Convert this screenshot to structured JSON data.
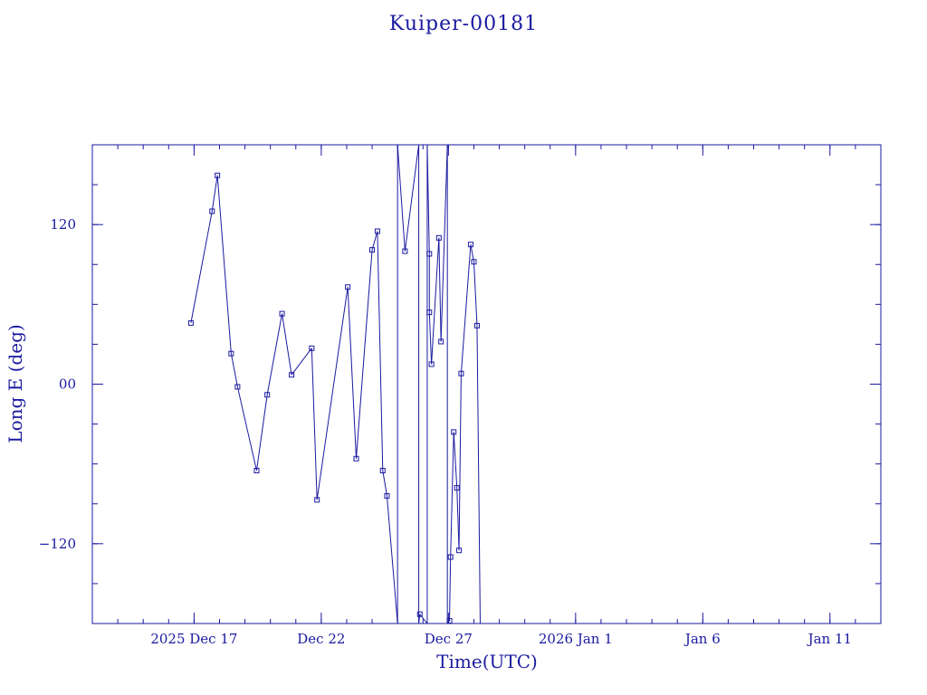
{
  "chart_data": {
    "type": "line",
    "title": "Kuiper-00181",
    "xlabel": "Time(UTC)",
    "ylabel": "Long E (deg)",
    "xlim": [
      "2025-12-13",
      "2026-01-13"
    ],
    "ylim": [
      -180,
      180
    ],
    "x_ticks": [
      {
        "date": "2025-12-17",
        "label": "2025 Dec 17"
      },
      {
        "date": "2025-12-22",
        "label": "Dec 22"
      },
      {
        "date": "2025-12-27",
        "label": "Dec 27"
      },
      {
        "date": "2026-01-01",
        "label": "2026 Jan  1"
      },
      {
        "date": "2026-01-06",
        "label": "Jan  6"
      },
      {
        "date": "2026-01-11",
        "label": "Jan 11"
      }
    ],
    "y_ticks": [
      {
        "value": 120,
        "label": "120"
      },
      {
        "value": 0,
        "label": "00"
      },
      {
        "value": -120,
        "label": "−120"
      }
    ],
    "grid": false,
    "marker": "square",
    "series": [
      {
        "color": "#1a1aa0",
        "points": [
          [
            "2025-12-16T21:00",
            46
          ],
          [
            "2025-12-17T17:00",
            130
          ],
          [
            "2025-12-17T22:00",
            157
          ],
          [
            "2025-12-18T11:00",
            23
          ],
          [
            "2025-12-18T17:00",
            -2
          ],
          [
            "2025-12-19T11:00",
            -65
          ],
          [
            "2025-12-19T21:00",
            -8
          ],
          [
            "2025-12-20T11:00",
            53
          ],
          [
            "2025-12-20T20:00",
            7
          ],
          [
            "2025-12-21T15:00",
            27
          ],
          [
            "2025-12-21T20:00",
            -87
          ],
          [
            "2025-12-23T01:00",
            73
          ],
          [
            "2025-12-23T09:00",
            -56
          ],
          [
            "2025-12-24T00:00",
            101
          ],
          [
            "2025-12-24T05:00",
            115
          ],
          [
            "2025-12-24T10:00",
            -65
          ],
          [
            "2025-12-24T14:00",
            -84
          ],
          [
            "2025-12-25T00:00",
            -180
          ],
          [
            "2025-12-25T00:00",
            180
          ],
          [
            "2025-12-25T07:00",
            100
          ],
          [
            "2025-12-25T20:00",
            180
          ],
          [
            "2025-12-25T20:00",
            -180
          ],
          [
            "2025-12-25T21:00",
            -173
          ],
          [
            "2025-12-26T04:00",
            -180
          ],
          [
            "2025-12-26T04:00",
            180
          ],
          [
            "2025-12-26T06:00",
            98
          ],
          [
            "2025-12-26T06:00",
            54
          ],
          [
            "2025-12-26T08:00",
            15
          ],
          [
            "2025-12-26T15:00",
            110
          ],
          [
            "2025-12-26T17:00",
            32
          ],
          [
            "2025-12-26T23:00",
            180
          ],
          [
            "2025-12-26T23:00",
            -180
          ],
          [
            "2025-12-27T01:00",
            -178
          ],
          [
            "2025-12-27T02:00",
            -130
          ],
          [
            "2025-12-27T05:00",
            -36
          ],
          [
            "2025-12-27T08:00",
            -78
          ],
          [
            "2025-12-27T10:00",
            -125
          ],
          [
            "2025-12-27T12:00",
            8
          ],
          [
            "2025-12-27T21:00",
            105
          ],
          [
            "2025-12-28T00:00",
            92
          ],
          [
            "2025-12-28T03:00",
            44
          ],
          [
            "2025-12-28T06:00",
            -180
          ]
        ]
      }
    ]
  }
}
